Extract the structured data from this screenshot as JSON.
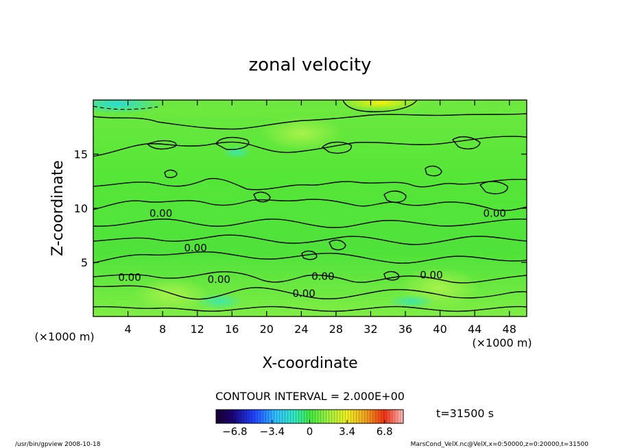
{
  "chart_data": {
    "type": "heatmap",
    "title": "zonal velocity",
    "xlabel": "X-coordinate",
    "ylabel": "Z-coordinate",
    "x_unit": "(×1000 m)",
    "y_unit": "(×1000 m)",
    "xlim": [
      0,
      50
    ],
    "ylim": [
      0,
      20
    ],
    "x_ticks": [
      4,
      8,
      12,
      16,
      20,
      24,
      28,
      32,
      36,
      40,
      44,
      48
    ],
    "y_ticks": [
      5,
      10,
      15
    ],
    "contour_interval_label": "CONTOUR INTERVAL = 2.000E+00",
    "contour_labels": [
      {
        "x": 7.8,
        "z": 9.2,
        "text": "0.00"
      },
      {
        "x": 11.8,
        "z": 6.0,
        "text": "0.00"
      },
      {
        "x": 4.2,
        "z": 3.3,
        "text": "0.00"
      },
      {
        "x": 14.5,
        "z": 3.1,
        "text": "0.00"
      },
      {
        "x": 24.3,
        "z": 1.8,
        "text": "0.00"
      },
      {
        "x": 26.5,
        "z": 3.4,
        "text": "0.00"
      },
      {
        "x": 39.0,
        "z": 3.5,
        "text": "0.00"
      },
      {
        "x": 46.3,
        "z": 9.2,
        "text": "0.00"
      }
    ],
    "colorbar": {
      "min": -8.5,
      "max": 8.5,
      "ticks": [
        -6.8,
        -3.4,
        0,
        3.4,
        6.8
      ],
      "tick_labels": [
        "−6.8",
        "−3.4",
        "0",
        "3.4",
        "6.8"
      ]
    },
    "time_label": "t=31500 s"
  },
  "footer": {
    "left": "/usr/bin/gpview  2008-10-18",
    "right": "MarsCond_VelX.nc@VelX,x=0:50000,z=0:20000,t=31500"
  },
  "colors": {
    "field_base": "#55e837",
    "field_light": "#8af04a",
    "cyan_patch": "#3fe0c8",
    "yellow_patch": "#d8ef20"
  }
}
